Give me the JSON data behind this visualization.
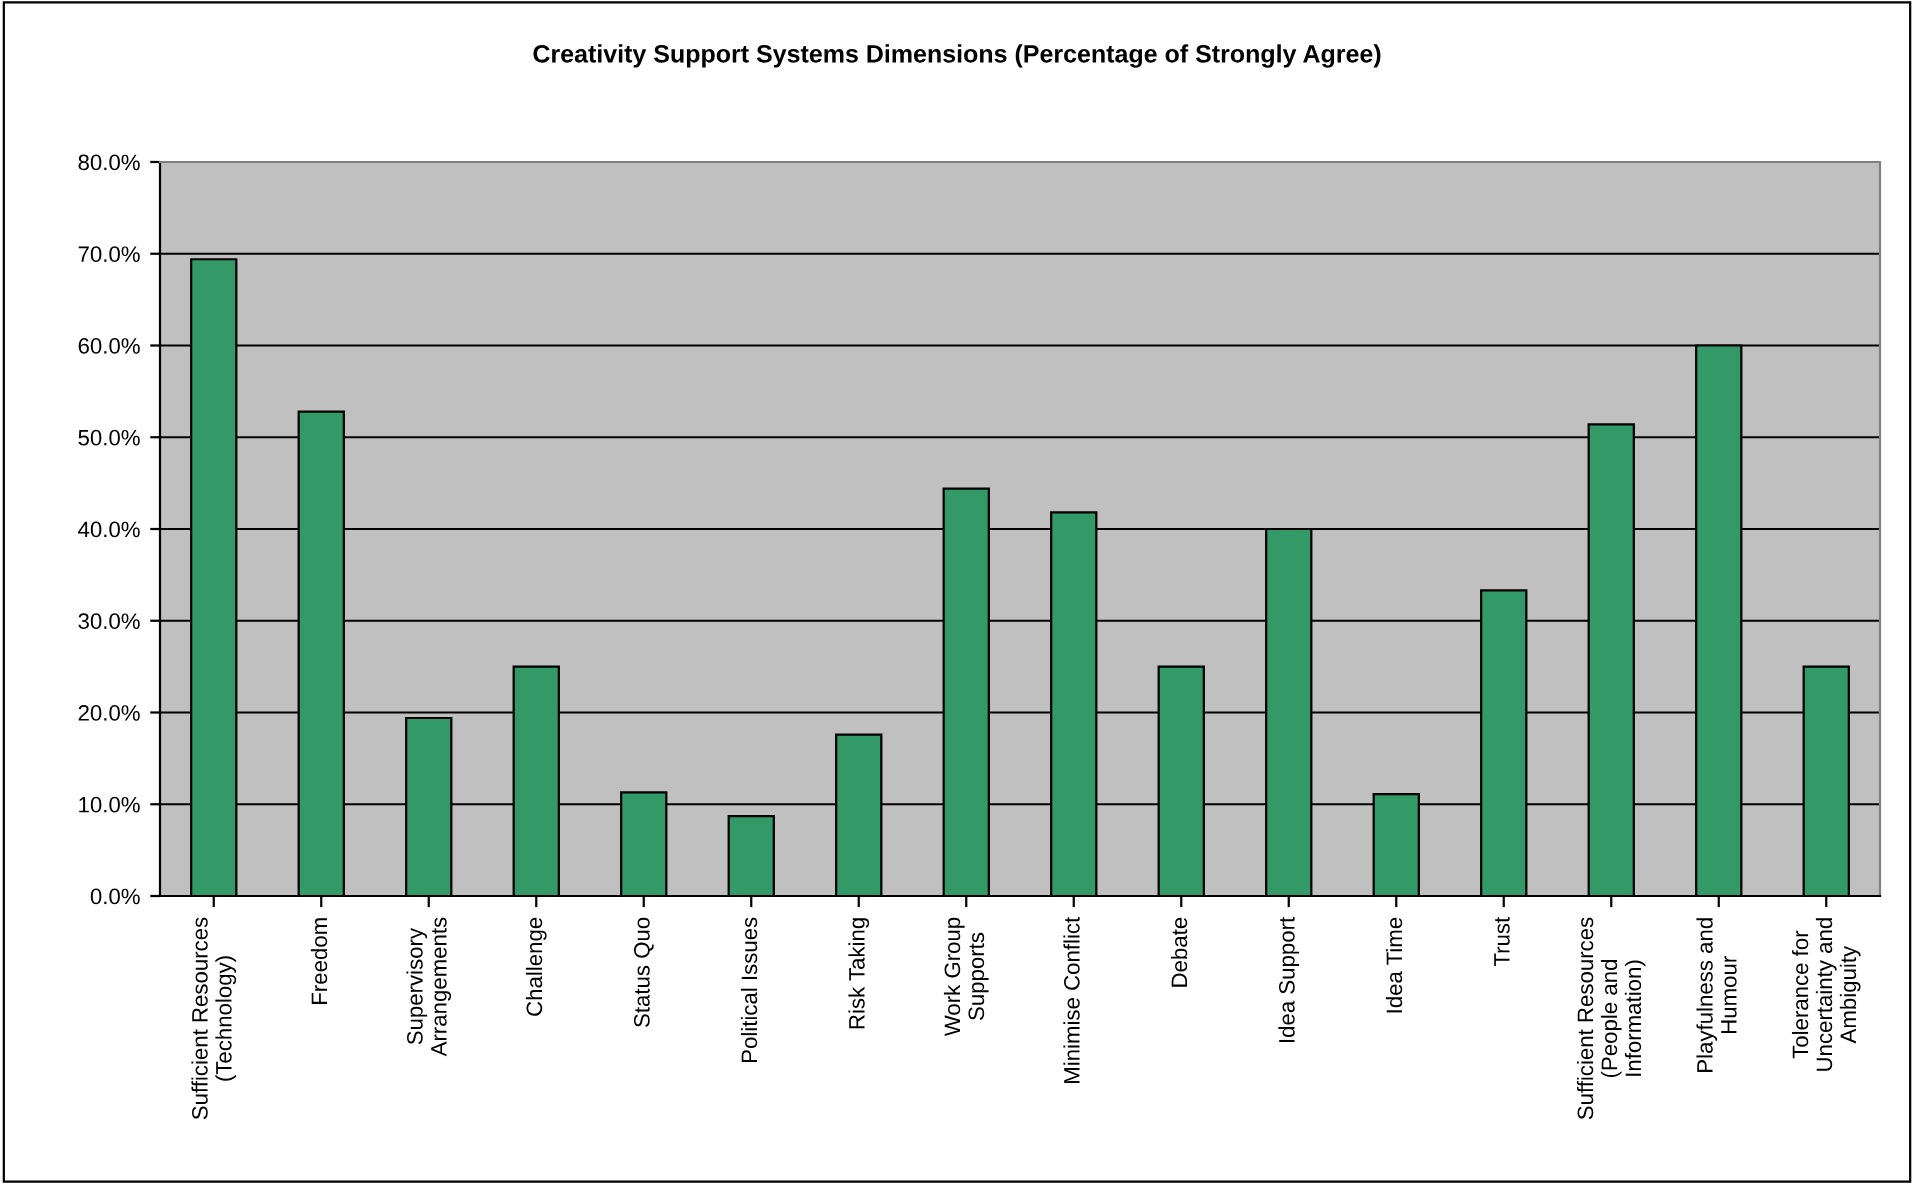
{
  "chart_data": {
    "type": "bar",
    "title": "Creativity Support Systems Dimensions (Percentage of Strongly Agree)",
    "categories": [
      "Sufficient Resources\n(Technology)",
      "Freedom",
      "Supervisory\nArrangements",
      "Challenge",
      "Status Quo",
      "Political Issues",
      "Risk Taking",
      "Work Group\nSupports",
      "Minimise Conflict",
      "Debate",
      "Idea Support",
      "Idea Time",
      "Trust",
      "Sufficient Resources\n(People and\nInformation)",
      "Playfulness and\nHumour",
      "Tolerance for\nUncertainty and\nAmbiguity"
    ],
    "values": [
      69.4,
      52.8,
      19.4,
      25.0,
      11.3,
      8.7,
      17.6,
      44.4,
      41.8,
      25.0,
      40.0,
      11.1,
      33.3,
      51.4,
      60.0,
      25.0
    ],
    "color": "#339966",
    "ylim": [
      0,
      80
    ],
    "yticks": [
      {
        "value": 0,
        "label": "0.0%"
      },
      {
        "value": 10,
        "label": "10.0%"
      },
      {
        "value": 20,
        "label": "20.0%"
      },
      {
        "value": 30,
        "label": "30.0%"
      },
      {
        "value": 40,
        "label": "40.0%"
      },
      {
        "value": 50,
        "label": "50.0%"
      },
      {
        "value": 60,
        "label": "60.0%"
      },
      {
        "value": 70,
        "label": "70.0%"
      },
      {
        "value": 80,
        "label": "80.0%"
      }
    ],
    "grid": "y"
  }
}
